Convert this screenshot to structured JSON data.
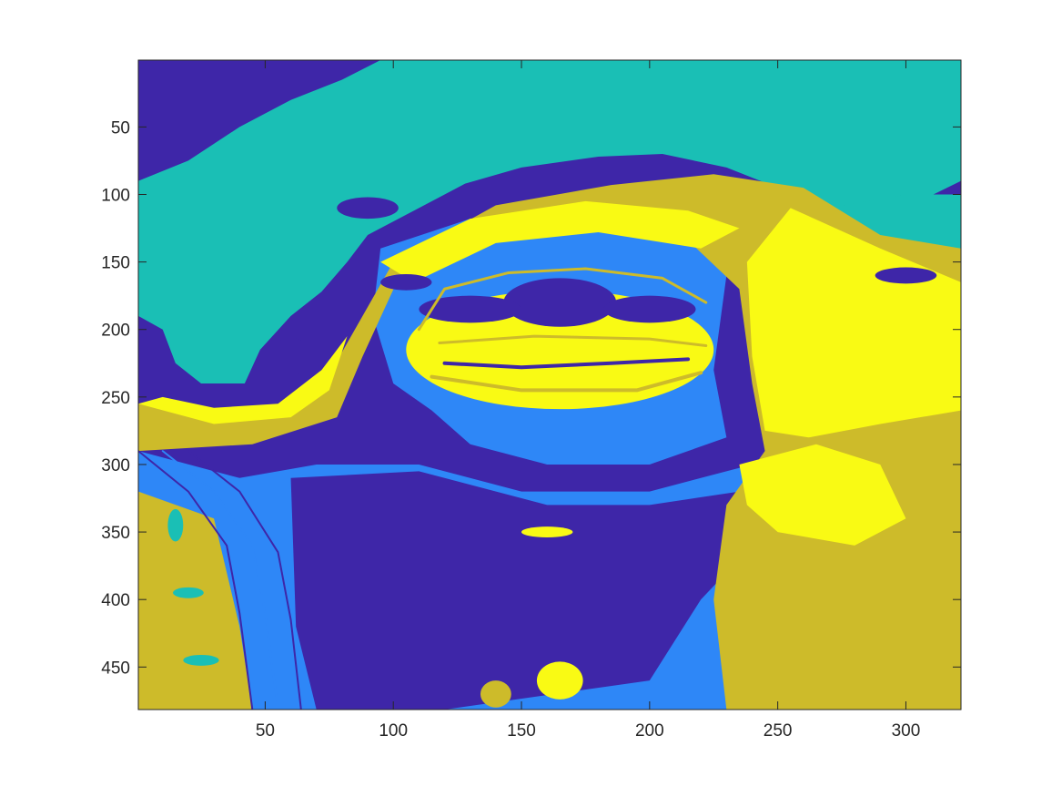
{
  "chart_data": {
    "type": "heatmap",
    "title": "",
    "xlabel": "",
    "ylabel": "",
    "image_size": [
      321,
      481
    ],
    "xlim": [
      0.5,
      321.5
    ],
    "ylim": [
      0.5,
      481.5
    ],
    "y_direction": "reverse",
    "xticks": [
      50,
      100,
      150,
      200,
      250,
      300
    ],
    "yticks": [
      50,
      100,
      150,
      200,
      250,
      300,
      350,
      400,
      450
    ],
    "xtick_labels": [
      "50",
      "100",
      "150",
      "200",
      "250",
      "300"
    ],
    "ytick_labels": [
      "50",
      "100",
      "150",
      "200",
      "250",
      "300",
      "350",
      "400",
      "450"
    ],
    "num_clusters": 5,
    "colormap": [
      "#3e26a8",
      "#2e87f7",
      "#1abfb5",
      "#cdbb2a",
      "#f9fa14"
    ],
    "grid": false,
    "legend": "none"
  }
}
